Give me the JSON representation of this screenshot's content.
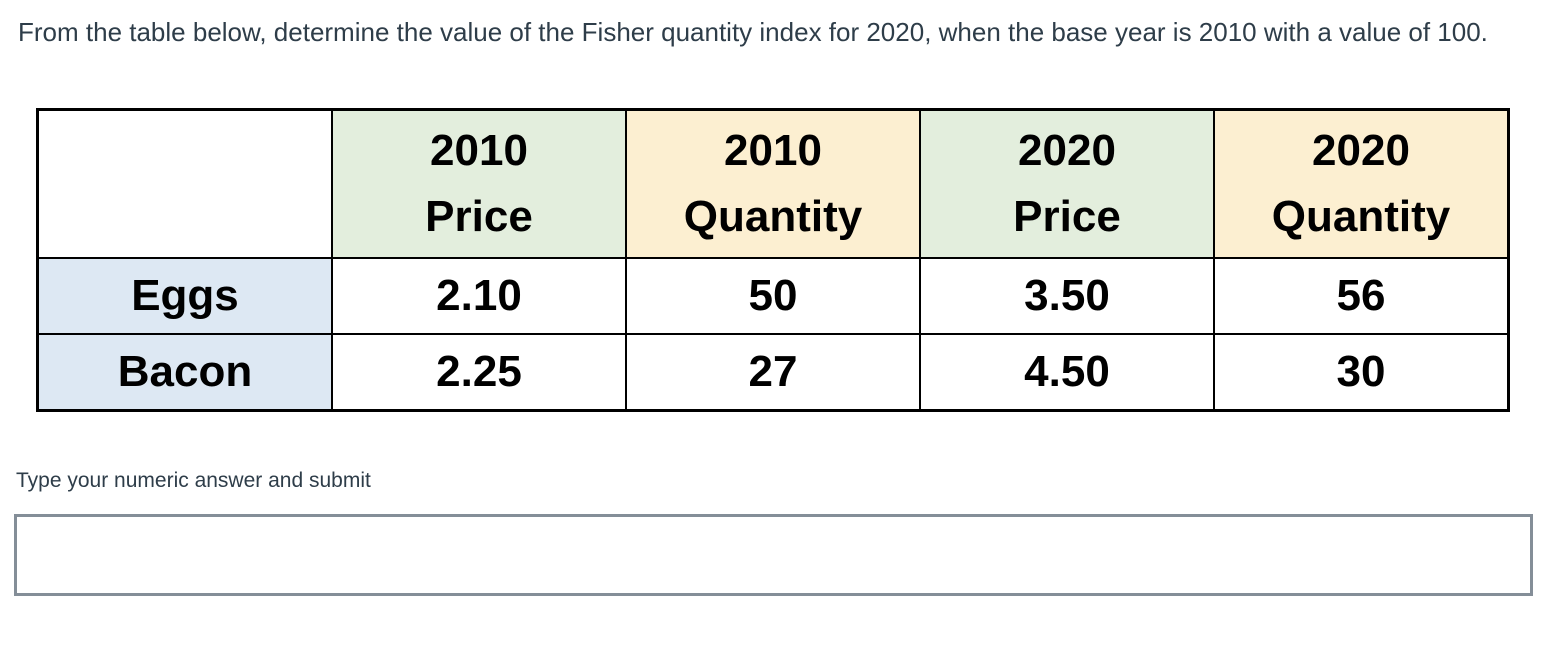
{
  "page": {
    "question_text": "From the table below, determine the value of the Fisher quantity index for 2020, when the base year is 2010 with a value of 100."
  },
  "data_table": {
    "headers": [
      {
        "year": "",
        "label": ""
      },
      {
        "year": "2010",
        "label": "Price"
      },
      {
        "year": "2010",
        "label": "Quantity"
      },
      {
        "year": "2020",
        "label": "Price"
      },
      {
        "year": "2020",
        "label": "Quantity"
      }
    ],
    "rows": [
      {
        "label": "Eggs",
        "cells": [
          "2.10",
          "50",
          "3.50",
          "56"
        ]
      },
      {
        "label": "Bacon",
        "cells": [
          "2.25",
          "27",
          "4.50",
          "30"
        ]
      }
    ]
  },
  "answer_section": {
    "instruction": "Type your numeric answer and submit",
    "input_value": "",
    "input_placeholder": ""
  },
  "colors": {
    "question_text": "#2e3d49",
    "header_price_bg": "#e3eedd",
    "header_quantity_bg": "#fcefd1",
    "row_label_bg": "#dde8f3",
    "table_border": "#000000",
    "input_border": "#848e98"
  }
}
